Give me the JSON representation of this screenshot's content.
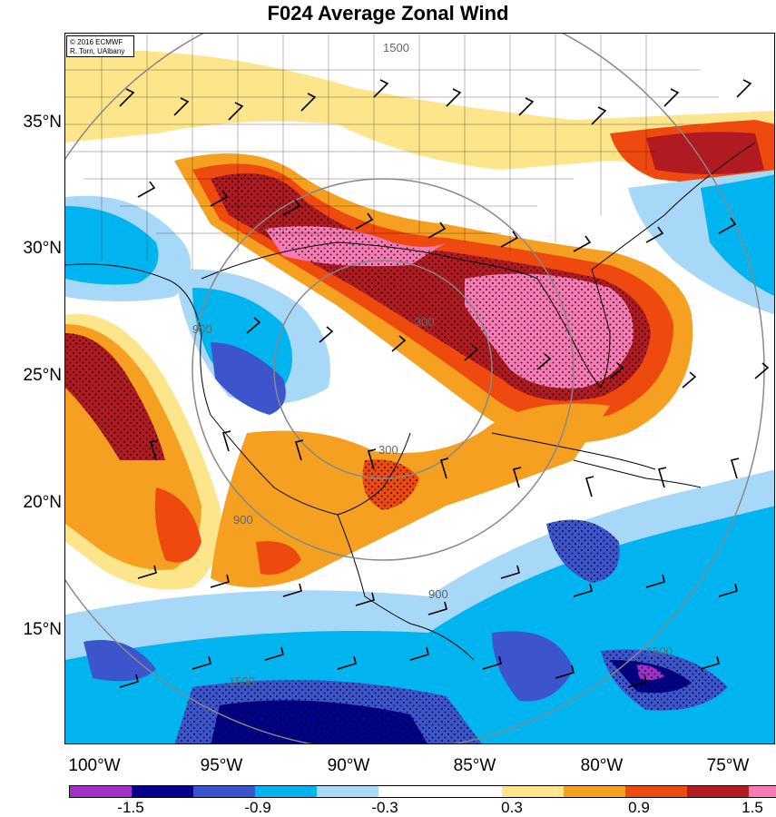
{
  "title": "F024 Average Zonal Wind",
  "credit": {
    "line1": "© 2016 ECMWF",
    "line2": "R. Torn, UAlbany"
  },
  "latitude_labels": [
    "35°N",
    "30°N",
    "25°N",
    "20°N",
    "15°N"
  ],
  "longitude_labels": [
    "100°W",
    "95°W",
    "90°W",
    "85°W",
    "80°W",
    "75°W"
  ],
  "contour_labels": [
    "300",
    "900",
    "1500"
  ],
  "colorbar": {
    "colors": [
      "#a030c8",
      "#00008b",
      "#3c55cc",
      "#00b4f0",
      "#a8d8f8",
      "#ffffff",
      "#ffffff",
      "#fde58c",
      "#f5a020",
      "#ee4a10",
      "#b01a20",
      "#f77ab4"
    ],
    "labels": [
      "-1.5",
      "-0.9",
      "-0.3",
      "0.3",
      "0.9",
      "1.5"
    ]
  }
}
